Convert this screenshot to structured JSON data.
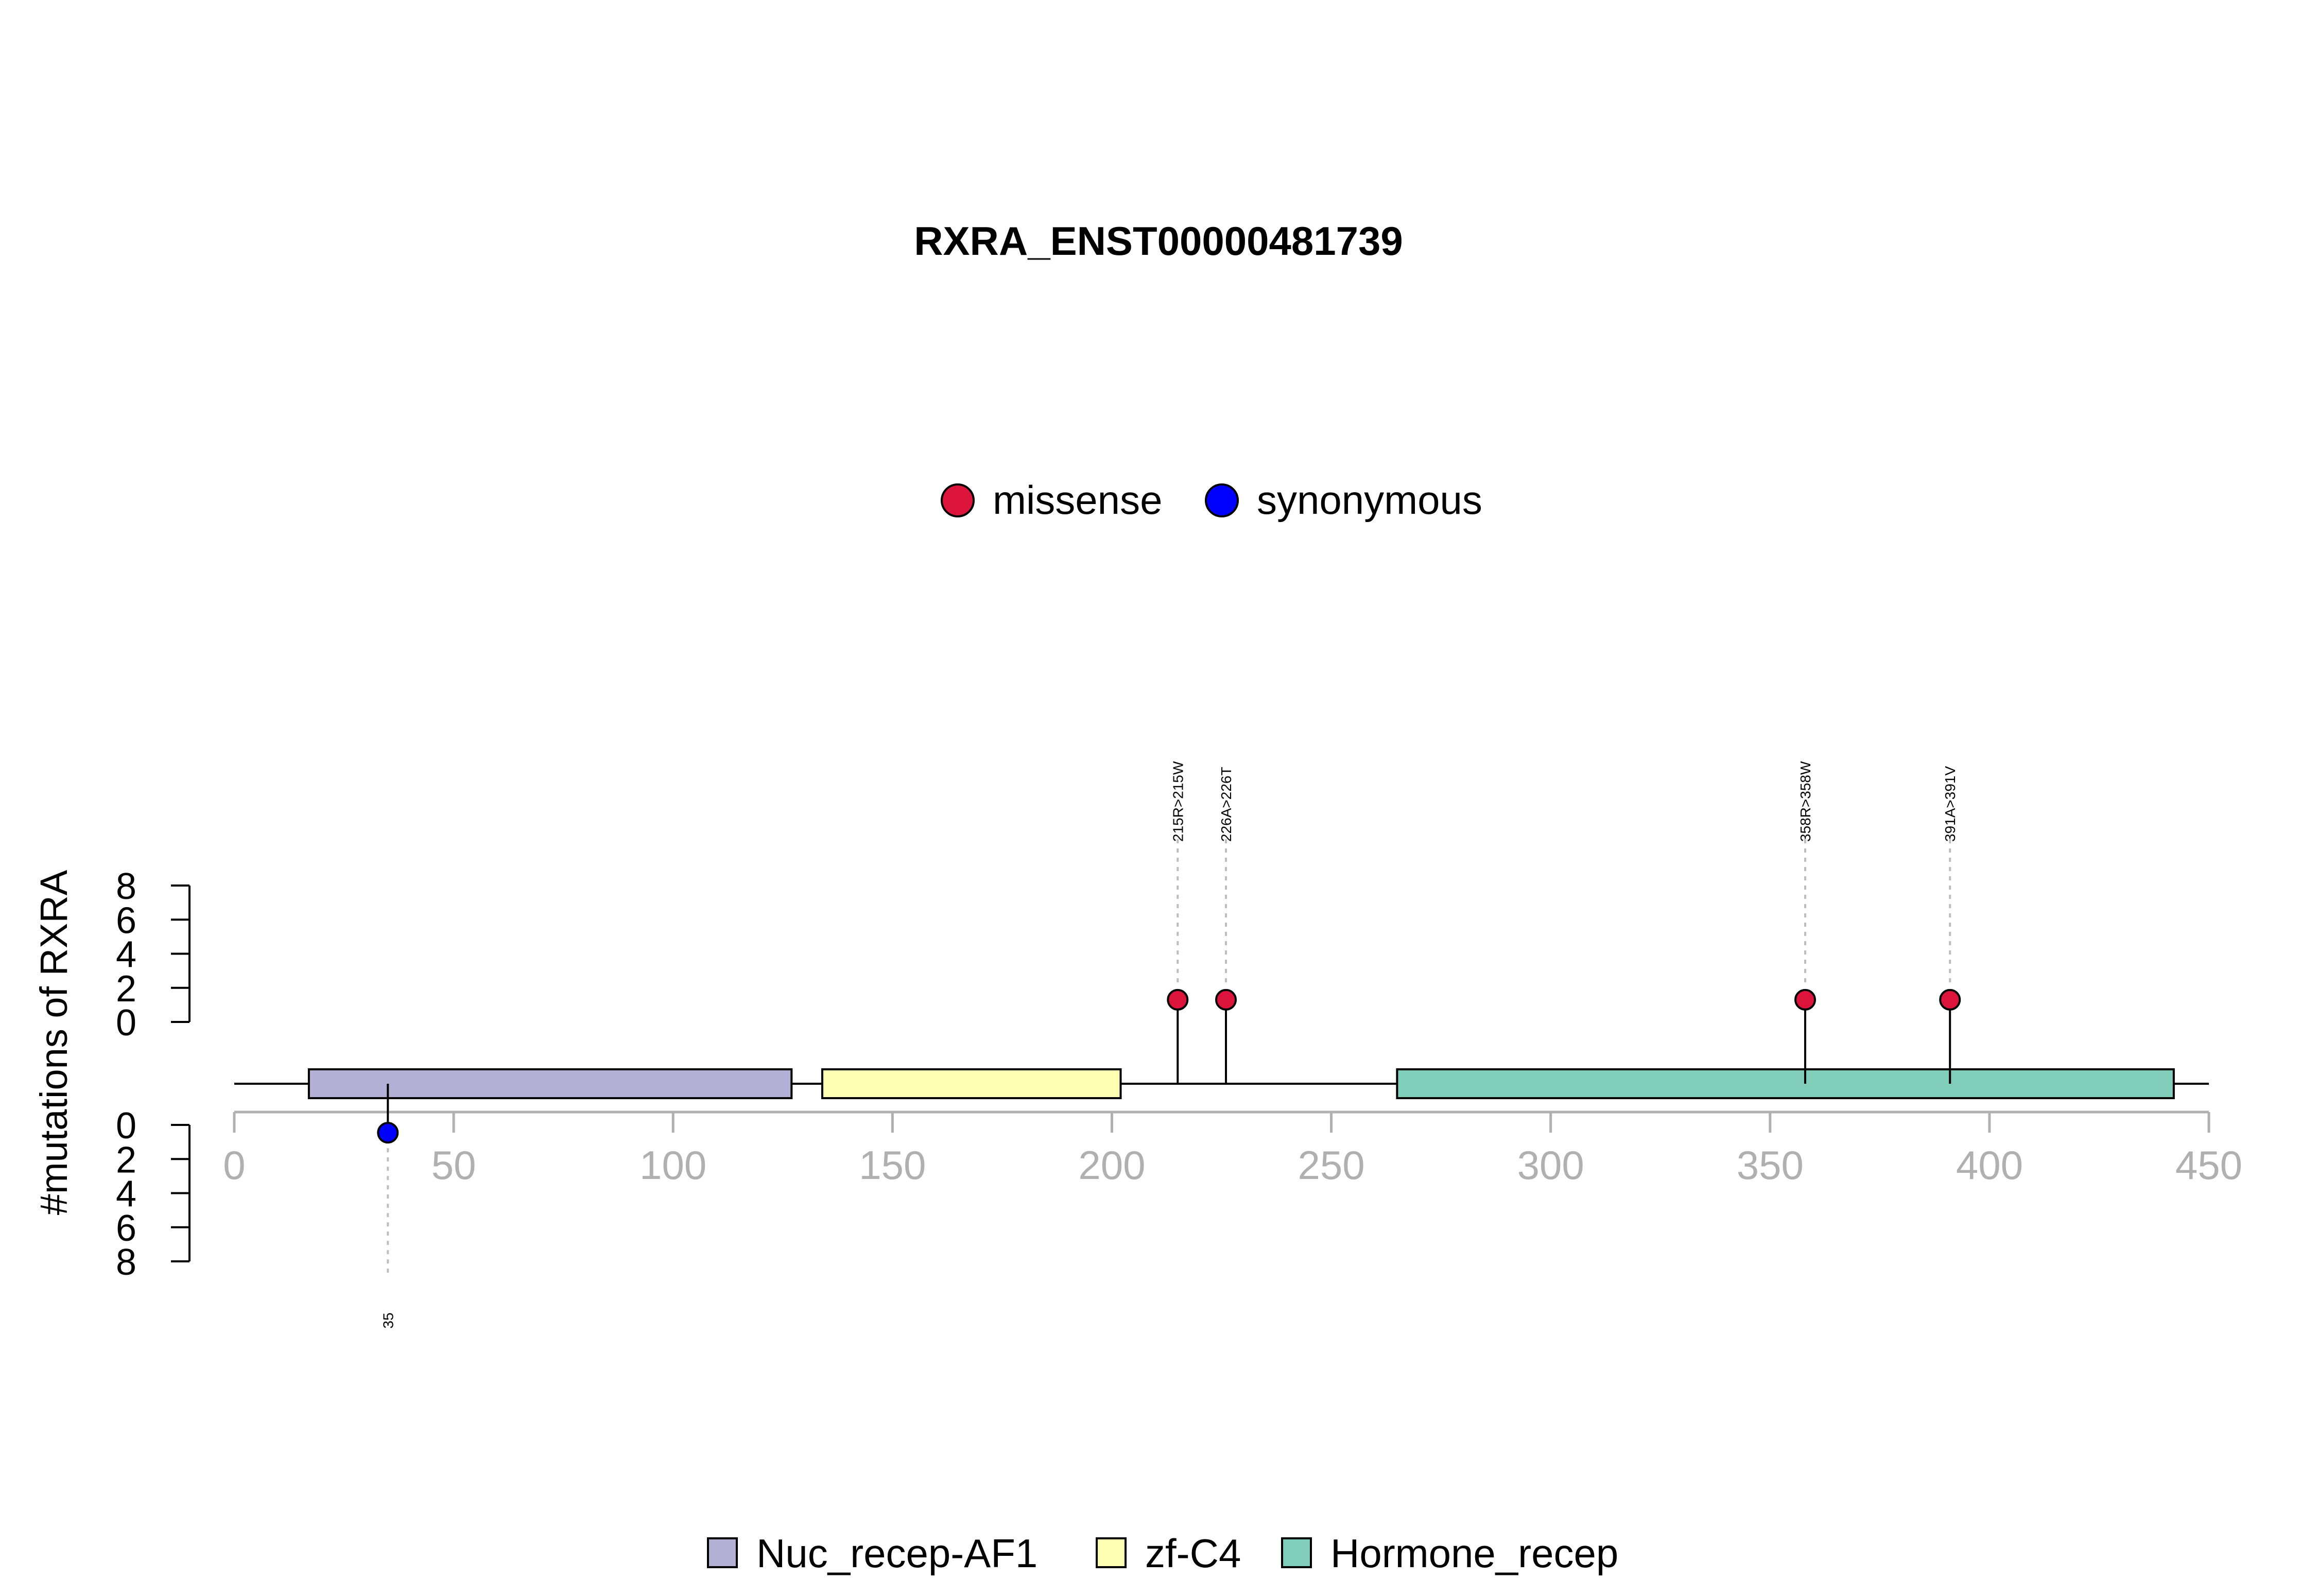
{
  "chart_data": {
    "type": "lollipop",
    "title": "RXRA_ENST00000481739",
    "ylabel": "#mutations of RXRA",
    "xlim": [
      0,
      450
    ],
    "xticks": [
      0,
      50,
      100,
      150,
      200,
      250,
      300,
      350,
      400,
      450
    ],
    "yticks_upper": [
      0,
      2,
      4,
      6,
      8
    ],
    "yticks_lower": [
      0,
      2,
      4,
      6,
      8
    ],
    "ylim": [
      0,
      8
    ],
    "colors": {
      "missense": "#DC143C",
      "synonymous": "#0000FF",
      "Nuc_recep-AF1": "#B3B0D6",
      "zf-C4": "#FFFFB3",
      "Hormone_recep": "#80CDBA",
      "axis": "#b0b0b0",
      "guide": "#bdbdbd"
    },
    "mutation_legend": [
      {
        "label": "missense",
        "color_key": "missense"
      },
      {
        "label": "synonymous",
        "color_key": "synonymous"
      }
    ],
    "domains": [
      {
        "name": "Nuc_recep-AF1",
        "start": 17,
        "end": 127
      },
      {
        "name": "zf-C4",
        "start": 134,
        "end": 202
      },
      {
        "name": "Hormone_recep",
        "start": 265,
        "end": 442
      }
    ],
    "mutations": [
      {
        "position": 35,
        "count": 1,
        "type": "synonymous",
        "side": "lower",
        "label": "35"
      },
      {
        "position": 215,
        "count": 1,
        "type": "missense",
        "side": "upper",
        "label": "215R>215W"
      },
      {
        "position": 226,
        "count": 1,
        "type": "missense",
        "side": "upper",
        "label": "226A>226T"
      },
      {
        "position": 358,
        "count": 1,
        "type": "missense",
        "side": "upper",
        "label": "358R>358W"
      },
      {
        "position": 391,
        "count": 1,
        "type": "missense",
        "side": "upper",
        "label": "391A>391V"
      }
    ]
  }
}
